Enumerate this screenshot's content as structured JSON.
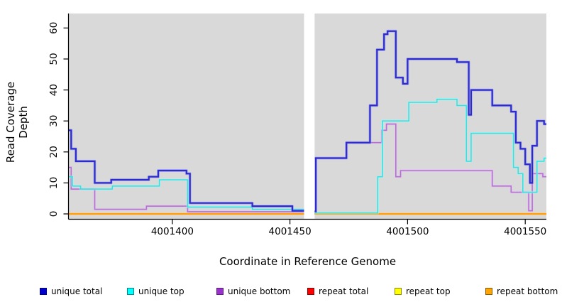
{
  "figure": {
    "y_axis_label": "Read Coverage Depth",
    "x_axis_label": "Coordinate in Reference Genome"
  },
  "chart_data": {
    "type": "line",
    "subtype": "step-after-coverage",
    "title": "",
    "xlabel": "Coordinate in Reference Genome",
    "ylabel": "Read Coverage Depth",
    "x_range": [
      4001356,
      4001559
    ],
    "y_range": [
      0,
      60
    ],
    "x_ticks": [
      4001400,
      4001450,
      4001500,
      4001550
    ],
    "y_ticks": [
      0,
      10,
      20,
      30,
      40,
      50,
      60
    ],
    "grid": false,
    "panel_background": "#d9d9d9",
    "gap_region": {
      "start": 4001456,
      "end": 4001460.5,
      "color": "#ffffff"
    },
    "legend_position": "bottom",
    "series": [
      {
        "name": "repeat total",
        "color": "#e00000",
        "halo": "#f08080",
        "width": 1.6,
        "segments": [
          [
            [
              4001356,
              0
            ],
            [
              4001456,
              0
            ]
          ],
          [
            [
              4001460.5,
              0
            ],
            [
              4001559,
              0
            ]
          ]
        ]
      },
      {
        "name": "repeat top",
        "color": "#f5f500",
        "halo": "#fafaa0",
        "width": 1.6,
        "segments": [
          [
            [
              4001356,
              0
            ],
            [
              4001456,
              0
            ]
          ],
          [
            [
              4001460.5,
              0
            ],
            [
              4001559,
              0
            ]
          ]
        ]
      },
      {
        "name": "repeat bottom",
        "color": "#ff9d0a",
        "halo": "#ffcf8a",
        "width": 2,
        "segments": [
          [
            [
              4001356,
              0
            ],
            [
              4001456,
              0
            ]
          ],
          [
            [
              4001460.5,
              0
            ],
            [
              4001559,
              0
            ]
          ]
        ]
      },
      {
        "name": "unique bottom",
        "color": "#b76fd6",
        "halo": "#e2c0ee",
        "width": 1.6,
        "segments": [
          [
            [
              4001356,
              15
            ],
            [
              4001357,
              8
            ],
            [
              4001367,
              1.5
            ],
            [
              4001389,
              2.5
            ],
            [
              4001406.5,
              0.7
            ],
            [
              4001456,
              0.7
            ]
          ],
          [
            [
              4001460.5,
              18
            ],
            [
              4001474,
              23
            ],
            [
              4001489,
              27
            ],
            [
              4001491,
              29
            ],
            [
              4001495,
              12
            ],
            [
              4001497,
              14
            ],
            [
              4001536,
              9
            ],
            [
              4001544,
              7
            ],
            [
              4001551.5,
              1
            ],
            [
              4001553,
              13
            ],
            [
              4001557.5,
              12
            ],
            [
              4001559,
              12
            ]
          ]
        ]
      },
      {
        "name": "unique top",
        "color": "#35e2e2",
        "halo": "#b2f4f2",
        "width": 1.6,
        "segments": [
          [
            [
              4001356,
              12
            ],
            [
              4001357.5,
              9
            ],
            [
              4001361,
              8
            ],
            [
              4001374.5,
              9
            ],
            [
              4001394.5,
              11
            ],
            [
              4001406.5,
              2.2
            ],
            [
              4001434,
              1.5
            ],
            [
              4001456,
              1.5
            ]
          ],
          [
            [
              4001460.5,
              0.3
            ],
            [
              4001487.3,
              12
            ],
            [
              4001489.3,
              30
            ],
            [
              4001500.5,
              36
            ],
            [
              4001512.5,
              37
            ],
            [
              4001521,
              35
            ],
            [
              4001525,
              17
            ],
            [
              4001527,
              26
            ],
            [
              4001545,
              15
            ],
            [
              4001547,
              13
            ],
            [
              4001549,
              7
            ],
            [
              4001555,
              17
            ],
            [
              4001558,
              18
            ],
            [
              4001559,
              18
            ]
          ]
        ]
      },
      {
        "name": "unique total",
        "color": "#2b2bd0",
        "halo": "#9494ea",
        "width": 2.2,
        "segments": [
          [
            [
              4001356,
              27
            ],
            [
              4001357,
              21
            ],
            [
              4001359,
              17
            ],
            [
              4001367,
              10
            ],
            [
              4001374,
              11
            ],
            [
              4001390,
              12
            ],
            [
              4001394,
              14
            ],
            [
              4001406,
              13
            ],
            [
              4001407.5,
              3.5
            ],
            [
              4001434,
              2.5
            ],
            [
              4001451,
              1
            ],
            [
              4001456,
              1
            ]
          ],
          [
            [
              4001460.5,
              0.8
            ],
            [
              4001461,
              18
            ],
            [
              4001474,
              23
            ],
            [
              4001484,
              35
            ],
            [
              4001487,
              53
            ],
            [
              4001490,
              58
            ],
            [
              4001491.5,
              59
            ],
            [
              4001495,
              44
            ],
            [
              4001498,
              42
            ],
            [
              4001500,
              50
            ],
            [
              4001521,
              49
            ],
            [
              4001526,
              32
            ],
            [
              4001527,
              40
            ],
            [
              4001536,
              35
            ],
            [
              4001544,
              33
            ],
            [
              4001546,
              23
            ],
            [
              4001548,
              21
            ],
            [
              4001550,
              16
            ],
            [
              4001552,
              10
            ],
            [
              4001553,
              22
            ],
            [
              4001555,
              30
            ],
            [
              4001558,
              29
            ],
            [
              4001559,
              29
            ]
          ]
        ]
      }
    ],
    "legend": [
      {
        "label": "unique total",
        "fill": "#0000cd",
        "border": "#00008b"
      },
      {
        "label": "unique top",
        "fill": "#00ffff",
        "border": "#008b8b"
      },
      {
        "label": "unique bottom",
        "fill": "#9932cc",
        "border": "#5d1a8b"
      },
      {
        "label": "repeat total",
        "fill": "#ff0000",
        "border": "#8b0000"
      },
      {
        "label": "repeat top",
        "fill": "#ffff00",
        "border": "#8b8b00"
      },
      {
        "label": "repeat bottom",
        "fill": "#ffa500",
        "border": "#8b5a00"
      }
    ]
  }
}
